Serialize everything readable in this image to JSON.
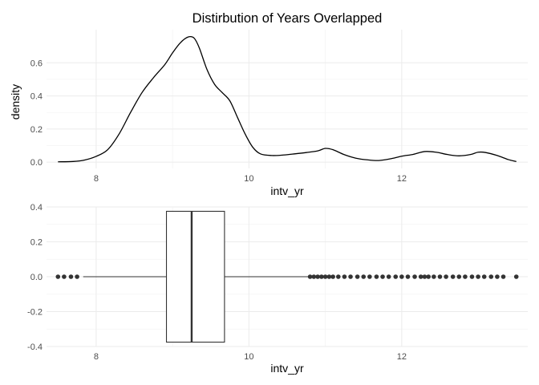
{
  "chart_data": [
    {
      "type": "line",
      "title": "Distirbution of Years Overlapped",
      "xlabel": "intv_yr",
      "ylabel": "density",
      "xlim": [
        7.35,
        13.65
      ],
      "ylim": [
        -0.038,
        0.8
      ],
      "x_ticks": [
        8,
        10,
        12
      ],
      "y_ticks": [
        0.0,
        0.2,
        0.4,
        0.6
      ],
      "y_tick_labels": [
        "0.0",
        "0.2",
        "0.4",
        "0.6"
      ],
      "grid": true,
      "series": [
        {
          "x": [
            7.5,
            7.7,
            7.85,
            8.0,
            8.15,
            8.3,
            8.45,
            8.6,
            8.75,
            8.9,
            9.0,
            9.1,
            9.2,
            9.28,
            9.35,
            9.45,
            9.55,
            9.65,
            9.75,
            9.85,
            9.95,
            10.05,
            10.15,
            10.3,
            10.45,
            10.6,
            10.75,
            10.9,
            11.0,
            11.1,
            11.25,
            11.4,
            11.55,
            11.7,
            11.85,
            12.0,
            12.15,
            12.3,
            12.45,
            12.6,
            12.75,
            12.9,
            13.0,
            13.1,
            13.25,
            13.4,
            13.5
          ],
          "y": [
            0.002,
            0.004,
            0.013,
            0.035,
            0.075,
            0.17,
            0.3,
            0.42,
            0.51,
            0.59,
            0.66,
            0.72,
            0.755,
            0.75,
            0.69,
            0.56,
            0.47,
            0.42,
            0.37,
            0.27,
            0.17,
            0.09,
            0.05,
            0.04,
            0.043,
            0.05,
            0.058,
            0.068,
            0.083,
            0.075,
            0.045,
            0.024,
            0.014,
            0.01,
            0.02,
            0.036,
            0.047,
            0.064,
            0.06,
            0.046,
            0.038,
            0.046,
            0.06,
            0.058,
            0.04,
            0.015,
            0.004
          ]
        }
      ]
    },
    {
      "type": "box",
      "xlabel": "intv_yr",
      "ylabel": "",
      "xlim": [
        7.35,
        13.65
      ],
      "ylim": [
        -0.4,
        0.4
      ],
      "x_ticks": [
        8,
        10,
        12
      ],
      "y_ticks": [
        -0.4,
        -0.2,
        0.0,
        0.2,
        0.4
      ],
      "y_tick_labels": [
        "-0.4",
        "-0.2",
        "0.0",
        "0.2",
        "0.4"
      ],
      "grid": true,
      "box": {
        "lower_whisker": 7.83,
        "q1": 8.92,
        "median": 9.25,
        "q3": 9.68,
        "upper_whisker": 10.78,
        "half_height": 0.375
      },
      "outliers": [
        7.5,
        7.58,
        7.67,
        7.75,
        10.8,
        10.85,
        10.9,
        10.95,
        11.0,
        11.05,
        11.1,
        11.17,
        11.25,
        11.33,
        11.42,
        11.5,
        11.58,
        11.67,
        11.75,
        11.83,
        11.92,
        12.0,
        12.08,
        12.17,
        12.25,
        12.3,
        12.35,
        12.42,
        12.5,
        12.58,
        12.67,
        12.75,
        12.83,
        12.92,
        13.0,
        13.08,
        13.17,
        13.25,
        13.33,
        13.5
      ]
    }
  ]
}
